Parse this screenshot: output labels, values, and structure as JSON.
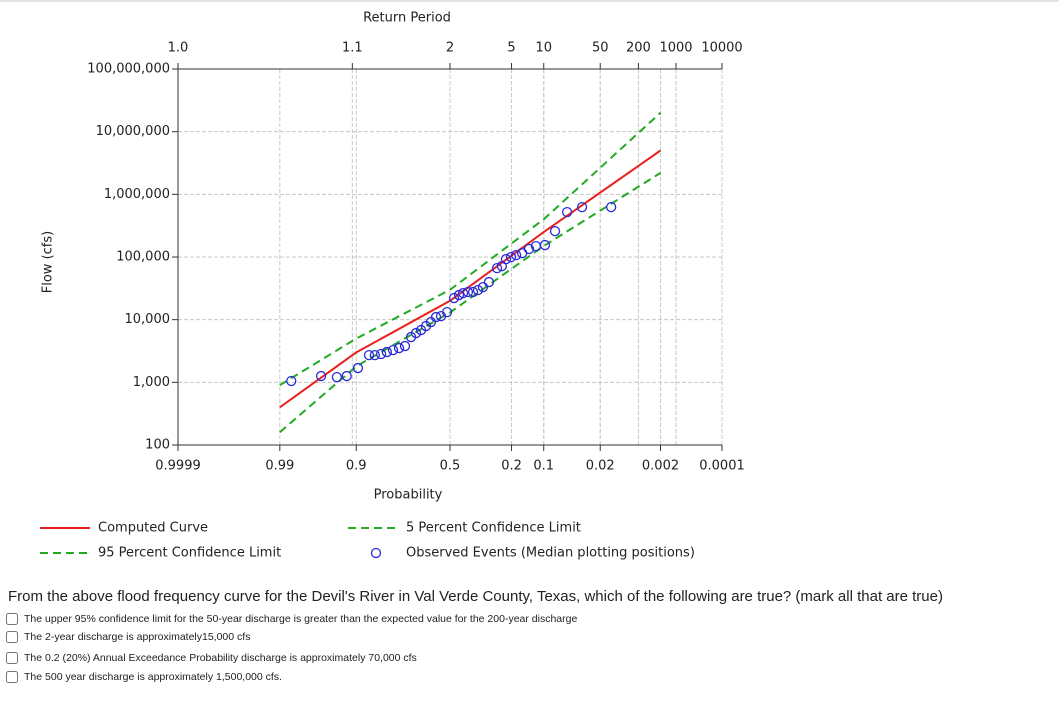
{
  "chart_data": {
    "type": "line",
    "x2label": "Return Period",
    "xlabel": "Probability",
    "ylabel": "Flow (cfs)",
    "xscale": "normal-probability",
    "yscale": "log",
    "grid": true,
    "xlim": [
      0.9999,
      0.0001
    ],
    "ylim": [
      100,
      100000000
    ],
    "xticks": [
      0.9999,
      0.99,
      0.9,
      0.5,
      0.2,
      0.1,
      0.02,
      0.002,
      0.0001
    ],
    "x2ticks": [
      {
        "value": 0.9999,
        "label": "1.0"
      },
      {
        "value": 0.9091,
        "label": "1.1"
      },
      {
        "value": 0.5,
        "label": "2"
      },
      {
        "value": 0.2,
        "label": "5"
      },
      {
        "value": 0.1,
        "label": "10"
      },
      {
        "value": 0.02,
        "label": "50"
      },
      {
        "value": 0.005,
        "label": "200"
      },
      {
        "value": 0.001,
        "label": "1000"
      },
      {
        "value": 0.0001,
        "label": "10000"
      }
    ],
    "yticks": [
      100,
      {
        "value": 1000,
        "label": "1,000"
      },
      {
        "value": 10000,
        "label": "10,000"
      },
      {
        "value": 100000,
        "label": "100,000"
      },
      {
        "value": 1000000,
        "label": "1,000,000"
      },
      {
        "value": 10000000,
        "label": "10,000,000"
      },
      {
        "value": 100000000,
        "label": "100,000,000"
      }
    ],
    "series": [
      {
        "name": "Computed Curve",
        "color": "#e8211e",
        "style": "solid",
        "x": [
          0.99,
          0.9,
          0.5,
          0.1,
          0.002
        ],
        "values": [
          400,
          3000,
          20000,
          250000,
          5000000
        ]
      },
      {
        "name": "95 Percent Confidence Limit",
        "color": "#22aa22",
        "style": "dashed",
        "x": [
          0.99,
          0.9,
          0.5,
          0.1,
          0.002
        ],
        "values": [
          160,
          1800,
          13000,
          150000,
          2200000
        ]
      },
      {
        "name": "5 Percent Confidence Limit",
        "color": "#22aa22",
        "style": "dashed",
        "x": [
          0.99,
          0.9,
          0.5,
          0.1,
          0.002
        ],
        "values": [
          900,
          5000,
          30000,
          400000,
          20000000
        ]
      },
      {
        "name": "Observed Events (Median plotting positions)",
        "color": "#2a2ad8",
        "style": "marker",
        "x": [
          0.985,
          0.961,
          0.939,
          0.921,
          0.896,
          0.866,
          0.848,
          0.827,
          0.806,
          0.782,
          0.757,
          0.731,
          0.703,
          0.679,
          0.654,
          0.629,
          0.603,
          0.576,
          0.549,
          0.516,
          0.478,
          0.451,
          0.429,
          0.403,
          0.376,
          0.351,
          0.326,
          0.297,
          0.26,
          0.239,
          0.222,
          0.202,
          0.183,
          0.162,
          0.14,
          0.12,
          0.097,
          0.0755,
          0.0547,
          0.0355,
          0.0138
        ],
        "values": [
          1050,
          1260,
          1210,
          1260,
          1690,
          2720,
          2720,
          2830,
          3040,
          3270,
          3520,
          3790,
          5280,
          6110,
          6820,
          7900,
          9160,
          11000,
          11400,
          13200,
          22100,
          24700,
          26500,
          27600,
          27600,
          29600,
          33100,
          39800,
          66500,
          71600,
          92500,
          99500,
          107000,
          115000,
          134000,
          149000,
          155000,
          259000,
          520000,
          625000,
          625000
        ]
      }
    ]
  },
  "question": {
    "text": "From the above flood frequency curve for the Devil's River in Val Verde County, Texas, which of the following are true? (mark all that are true)",
    "options": [
      "The upper 95% confidence limit for the 50-year discharge is greater than the expected value for the 200-year discharge",
      "The 2-year discharge is approximately15,000 cfs",
      "The 0.2 (20%) Annual Exceedance Probability discharge is approximately 70,000 cfs",
      "The 500 year discharge is approximately 1,500,000 cfs."
    ]
  }
}
